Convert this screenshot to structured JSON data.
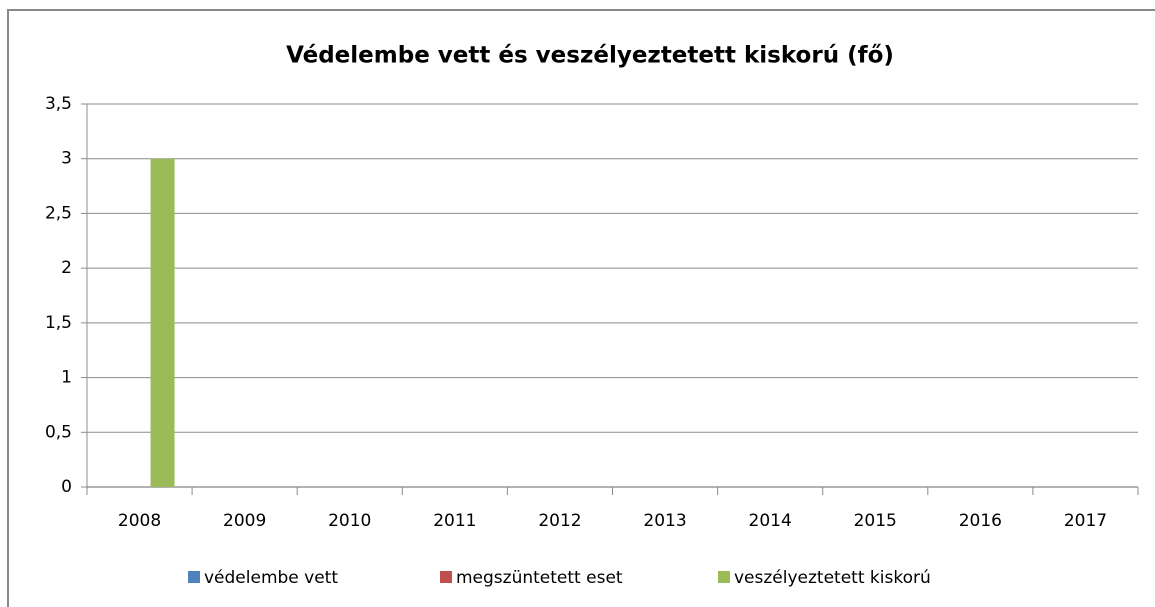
{
  "chart_data": {
    "type": "bar",
    "title": "Védelembe vett és veszélyeztetett kiskorú (fő)",
    "categories": [
      "2008",
      "2009",
      "2010",
      "2011",
      "2012",
      "2013",
      "2014",
      "2015",
      "2016",
      "2017"
    ],
    "series": [
      {
        "name": "védelembe vett",
        "color": "#4f81bd",
        "values": [
          0,
          0,
          0,
          0,
          0,
          0,
          0,
          0,
          0,
          0
        ]
      },
      {
        "name": "megszüntetett eset",
        "color": "#c0504d",
        "values": [
          0,
          0,
          0,
          0,
          0,
          0,
          0,
          0,
          0,
          0
        ]
      },
      {
        "name": "veszélyeztetett kiskorú",
        "color": "#9bbb59",
        "values": [
          3,
          0,
          0,
          0,
          0,
          0,
          0,
          0,
          0,
          0
        ]
      }
    ],
    "ylim": [
      0,
      3.5
    ],
    "yticks": [
      0,
      {
        "value": 0.5,
        "label": "0,5"
      },
      1,
      {
        "value": 1.5,
        "label": "1,5"
      },
      2,
      {
        "value": 2.5,
        "label": "2,5"
      },
      3,
      {
        "value": 3.5,
        "label": "3,5"
      }
    ],
    "grid": true,
    "legend": "bottom"
  }
}
